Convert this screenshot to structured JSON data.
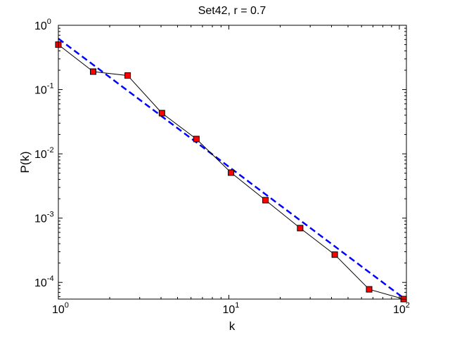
{
  "chart_data": {
    "type": "line",
    "title": "Set42, r = 0.7",
    "xlabel": "k",
    "ylabel": "P(k)",
    "xscale": "log",
    "yscale": "log",
    "xlim": [
      1,
      110
    ],
    "ylim": [
      5.5e-05,
      1
    ],
    "grid": false,
    "legend": "none",
    "x_ticks": [
      {
        "value": 1,
        "base": "10",
        "exp": "0"
      },
      {
        "value": 10,
        "base": "10",
        "exp": "1"
      },
      {
        "value": 100,
        "base": "10",
        "exp": "2"
      }
    ],
    "y_ticks": [
      {
        "value": 1,
        "base": "10",
        "exp": "0"
      },
      {
        "value": 0.1,
        "base": "10",
        "exp": "-1"
      },
      {
        "value": 0.01,
        "base": "10",
        "exp": "-2"
      },
      {
        "value": 0.001,
        "base": "10",
        "exp": "-3"
      },
      {
        "value": 0.0001,
        "base": "10",
        "exp": "-4"
      }
    ],
    "series": [
      {
        "style": "solid line with square markers",
        "line_color": "#000000",
        "marker_color": "#ff0000",
        "x": [
          1.0,
          1.6,
          2.55,
          4.05,
          6.45,
          10.3,
          16.4,
          26.2,
          41.8,
          66.5,
          106
        ],
        "y": [
          0.5,
          0.19,
          0.165,
          0.043,
          0.017,
          0.0051,
          0.0019,
          0.0007,
          0.00027,
          7.8e-05,
          5.5e-05
        ]
      },
      {
        "style": "dashed fit line",
        "line_color": "#0000ff",
        "x": [
          1.0,
          106
        ],
        "y": [
          0.62,
          5.7e-05
        ]
      }
    ]
  }
}
